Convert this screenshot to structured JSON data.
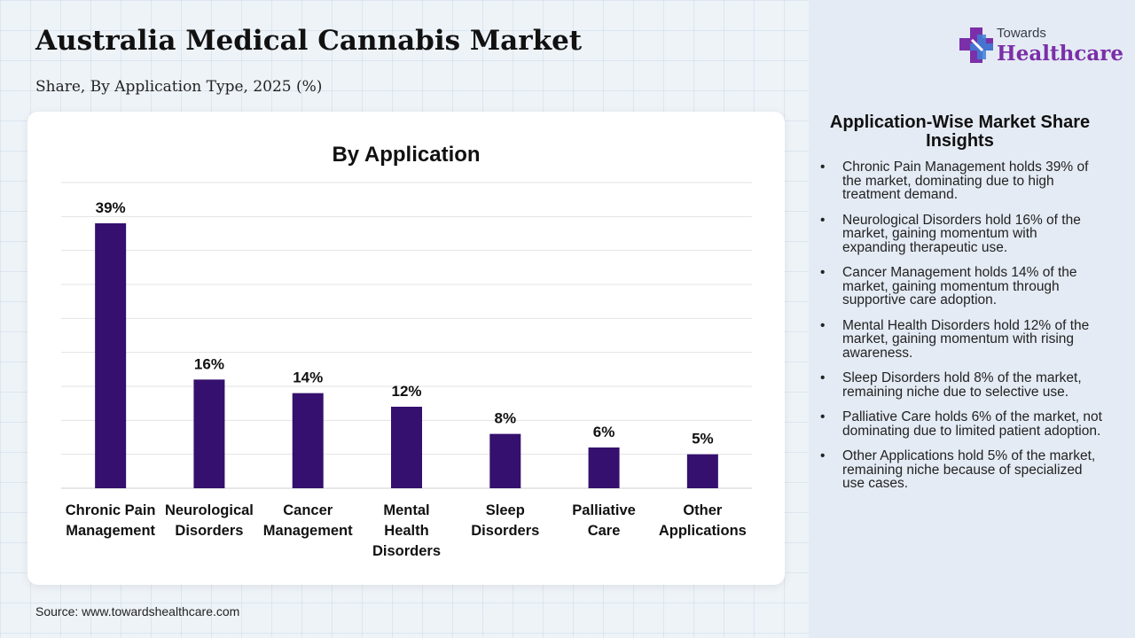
{
  "header": {
    "title": "Australia Medical Cannabis Market",
    "subtitle": "Share, By Application Type, 2025 (%)"
  },
  "logo": {
    "small_text": "Towards",
    "big_text": "Healthcare",
    "icon": "cross-plus-icon",
    "colors": {
      "purple": "#7b2fa8",
      "blue": "#3d7fd6"
    }
  },
  "chart_data": {
    "type": "bar",
    "title": "By Application",
    "categories": [
      [
        "Chronic Pain",
        "Management"
      ],
      [
        "Neurological",
        "Disorders"
      ],
      [
        "Cancer",
        "Management"
      ],
      [
        "Mental",
        "Health",
        "Disorders"
      ],
      [
        "Sleep",
        "Disorders"
      ],
      [
        "Palliative",
        "Care"
      ],
      [
        "Other",
        "Applications"
      ]
    ],
    "values": [
      39,
      16,
      14,
      12,
      8,
      6,
      5
    ],
    "data_labels": [
      "39%",
      "16%",
      "14%",
      "12%",
      "8%",
      "6%",
      "5%"
    ],
    "ylim": [
      0,
      45
    ],
    "ytick_step": 5,
    "grid": true,
    "bar_color": "#35106e",
    "xlabel": "",
    "ylabel": ""
  },
  "insights": {
    "title": "Application-Wise Market Share Insights",
    "items": [
      "Chronic Pain Management holds 39% of the market, dominating due to high treatment demand.",
      "Neurological Disorders hold 16% of the market, gaining momentum with expanding therapeutic use.",
      "Cancer Management holds 14% of the market, gaining momentum through supportive care adoption.",
      "Mental Health Disorders hold 12% of the market, gaining momentum with rising awareness.",
      "Sleep Disorders hold 8% of the market, remaining niche due to selective use.",
      "Palliative Care holds 6% of the market, not dominating due to limited patient adoption.",
      "Other Applications hold 5% of the market, remaining niche because of specialized use cases."
    ]
  },
  "footer": {
    "source": "Source: www.towardshealthcare.com"
  }
}
